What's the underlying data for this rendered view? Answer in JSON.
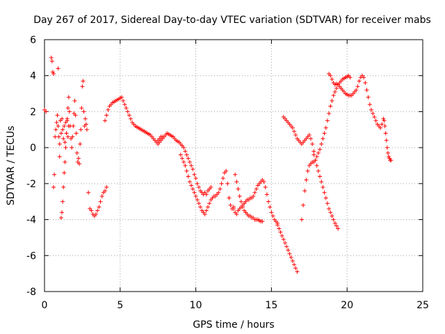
{
  "chart_data": {
    "type": "scatter",
    "title": "Day 267 of 2017, Sidereal Day-to-day VTEC variation (SDTVAR) for receiver mabs",
    "xlabel": "GPS time / hours",
    "ylabel": "SDTVAR / TECUs",
    "xlim": [
      0,
      25
    ],
    "ylim": [
      -8,
      6
    ],
    "xticks": [
      0,
      5,
      10,
      15,
      20,
      25
    ],
    "yticks": [
      -8,
      -6,
      -4,
      -2,
      0,
      2,
      4,
      6
    ],
    "grid": true,
    "marker": "+",
    "color": "#ff0000",
    "series": [
      {
        "name": "s1",
        "x": [
          0.0,
          0.1
        ],
        "y": [
          2.1,
          2.0
        ]
      },
      {
        "name": "s2",
        "x": [
          0.45,
          0.5,
          0.55,
          0.6
        ],
        "y": [
          5.0,
          4.8,
          4.2,
          4.1
        ]
      },
      {
        "name": "s3",
        "x": [
          0.6,
          0.65,
          0.7,
          0.75,
          0.8,
          0.85,
          0.9,
          0.95,
          1.0,
          1.05,
          1.1,
          1.15,
          1.2,
          1.25,
          1.3,
          1.35,
          1.4,
          1.45,
          1.5,
          1.55,
          1.6
        ],
        "y": [
          -2.2,
          -1.5,
          0.6,
          1.0,
          1.4,
          1.8,
          1.2,
          0.6,
          0.2,
          1.5,
          0.8,
          1.6,
          1.0,
          0.5,
          1.2,
          0.3,
          1.4,
          0.8,
          1.6,
          0.6,
          1.2
        ]
      },
      {
        "name": "s4",
        "x": [
          0.9,
          1.0,
          1.1,
          1.15,
          1.2,
          1.25,
          1.3,
          1.35,
          1.4,
          1.45,
          1.5,
          1.55,
          1.6,
          1.65,
          1.7,
          1.75,
          1.8,
          1.85,
          1.9,
          1.95,
          2.0,
          2.05,
          2.1,
          2.15,
          2.2,
          2.25,
          2.3,
          2.35,
          2.4,
          2.45,
          2.5,
          2.55,
          2.6,
          2.65,
          2.7,
          2.75,
          2.8
        ],
        "y": [
          4.4,
          -0.5,
          -3.9,
          -3.6,
          -3.0,
          -2.2,
          -1.4,
          -0.8,
          0.0,
          0.8,
          1.5,
          2.2,
          2.8,
          2.0,
          1.2,
          0.5,
          0.0,
          0.6,
          1.2,
          1.9,
          2.6,
          1.8,
          0.8,
          -0.3,
          -0.8,
          -0.6,
          -0.9,
          0.2,
          1.0,
          2.2,
          3.4,
          3.7,
          2.0,
          1.2,
          1.6,
          1.3,
          1.0
        ]
      },
      {
        "name": "s5",
        "x": [
          2.9,
          3.0,
          3.1,
          3.2,
          3.3,
          3.4,
          3.5,
          3.6,
          3.7,
          3.8,
          3.9,
          4.0,
          4.1
        ],
        "y": [
          -2.5,
          -3.4,
          -3.5,
          -3.7,
          -3.8,
          -3.7,
          -3.5,
          -3.3,
          -3.0,
          -2.7,
          -2.5,
          -2.4,
          -2.2
        ]
      },
      {
        "name": "s6",
        "x": [
          4.0,
          4.1,
          4.2,
          4.3,
          4.4,
          4.5,
          4.6,
          4.7,
          4.8,
          4.9,
          5.0,
          5.1,
          5.2,
          5.3,
          5.4,
          5.5,
          5.6,
          5.7,
          5.8,
          5.9,
          6.0,
          6.1,
          6.2,
          6.3,
          6.4,
          6.5,
          6.6,
          6.7,
          6.8,
          6.9,
          7.0,
          7.1,
          7.2,
          7.3,
          7.4,
          7.5,
          7.6,
          7.7,
          7.8
        ],
        "y": [
          1.5,
          1.8,
          2.1,
          2.3,
          2.4,
          2.5,
          2.55,
          2.6,
          2.65,
          2.7,
          2.75,
          2.8,
          2.6,
          2.4,
          2.2,
          2.0,
          1.8,
          1.6,
          1.4,
          1.3,
          1.2,
          1.15,
          1.1,
          1.05,
          1.0,
          0.95,
          0.9,
          0.85,
          0.8,
          0.75,
          0.7,
          0.6,
          0.5,
          0.4,
          0.3,
          0.4,
          0.5,
          0.6,
          0.6
        ]
      },
      {
        "name": "s7",
        "x": [
          7.5,
          7.6,
          7.7,
          7.8,
          7.9,
          8.0,
          8.1,
          8.2,
          8.3,
          8.4,
          8.5,
          8.6,
          8.7,
          8.8,
          8.9,
          9.0,
          9.1,
          9.2,
          9.3,
          9.4,
          9.5,
          9.6,
          9.7,
          9.8,
          9.9,
          10.0,
          10.1,
          10.2,
          10.3,
          10.4,
          10.5,
          10.6,
          10.7,
          10.8,
          10.9,
          11.0
        ],
        "y": [
          0.2,
          0.3,
          0.4,
          0.5,
          0.6,
          0.7,
          0.8,
          0.75,
          0.7,
          0.65,
          0.6,
          0.5,
          0.4,
          0.35,
          0.3,
          0.2,
          0.1,
          0.0,
          -0.2,
          -0.4,
          -0.6,
          -0.8,
          -1.0,
          -1.2,
          -1.5,
          -1.7,
          -2.0,
          -2.2,
          -2.4,
          -2.5,
          -2.6,
          -2.5,
          -2.6,
          -2.4,
          -2.3,
          -2.2
        ]
      },
      {
        "name": "s8",
        "x": [
          9.0,
          9.1,
          9.2,
          9.3,
          9.4,
          9.5,
          9.6,
          9.7,
          9.8,
          9.9,
          10.0,
          10.1,
          10.2,
          10.3,
          10.4,
          10.5,
          10.6,
          10.7,
          10.8,
          10.9,
          11.0,
          11.1,
          11.2,
          11.3,
          11.4,
          11.5,
          11.6,
          11.7,
          11.8,
          11.9,
          12.0,
          12.1,
          12.2,
          12.3,
          12.4,
          12.5
        ],
        "y": [
          -0.4,
          -0.6,
          -0.8,
          -1.0,
          -1.3,
          -1.6,
          -1.9,
          -2.1,
          -2.3,
          -2.5,
          -2.7,
          -2.9,
          -3.1,
          -3.3,
          -3.5,
          -3.6,
          -3.7,
          -3.5,
          -3.3,
          -3.1,
          -2.9,
          -2.8,
          -2.7,
          -2.7,
          -2.6,
          -2.5,
          -2.3,
          -2.0,
          -1.7,
          -1.4,
          -1.3,
          -2.0,
          -2.8,
          -3.2,
          -3.4,
          -3.3
        ]
      },
      {
        "name": "s9",
        "x": [
          12.6,
          12.7,
          12.8,
          12.9,
          13.0,
          13.1,
          13.2,
          13.3,
          13.4,
          13.5,
          13.6,
          13.7,
          13.8,
          13.9,
          14.0,
          14.1,
          14.2,
          14.3,
          14.4
        ],
        "y": [
          -1.5,
          -1.9,
          -2.3,
          -2.7,
          -3.0,
          -3.3,
          -3.5,
          -3.6,
          -3.7,
          -3.8,
          -3.8,
          -3.9,
          -3.9,
          -4.0,
          -4.0,
          -4.0,
          -4.05,
          -4.1,
          -4.1
        ]
      },
      {
        "name": "s10",
        "x": [
          12.5,
          12.6,
          12.7,
          12.8,
          12.9,
          13.0,
          13.1,
          13.2,
          13.3,
          13.4,
          13.5,
          13.6,
          13.7,
          13.8,
          13.9,
          14.0,
          14.1,
          14.2,
          14.3,
          14.4,
          14.5,
          14.6,
          14.7,
          14.8,
          14.9,
          15.0,
          15.1,
          15.2,
          15.3,
          15.4
        ],
        "y": [
          -3.4,
          -3.6,
          -3.7,
          -3.5,
          -3.4,
          -3.3,
          -3.2,
          -3.1,
          -3.0,
          -2.9,
          -2.9,
          -2.8,
          -2.8,
          -2.7,
          -2.5,
          -2.3,
          -2.1,
          -2.0,
          -1.9,
          -1.8,
          -1.9,
          -2.2,
          -2.6,
          -3.0,
          -3.3,
          -3.6,
          -3.8,
          -4.0,
          -4.1,
          -4.2
        ]
      },
      {
        "name": "s11",
        "x": [
          15.4,
          15.5,
          15.6,
          15.7,
          15.8,
          15.9,
          16.0,
          16.1,
          16.2,
          16.3,
          16.4,
          16.5,
          16.6,
          16.7
        ],
        "y": [
          -4.3,
          -4.5,
          -4.7,
          -4.9,
          -5.1,
          -5.3,
          -5.5,
          -5.7,
          -5.9,
          -6.1,
          -6.3,
          -6.5,
          -6.7,
          -6.9
        ]
      },
      {
        "name": "s12",
        "x": [
          15.8,
          15.9,
          16.0,
          16.1,
          16.2,
          16.3,
          16.4,
          16.5,
          16.6,
          16.7,
          16.8,
          16.9,
          17.0,
          17.1,
          17.2,
          17.3,
          17.4,
          17.5,
          17.6,
          17.7,
          17.8
        ],
        "y": [
          1.7,
          1.6,
          1.5,
          1.4,
          1.3,
          1.2,
          1.1,
          0.9,
          0.7,
          0.5,
          0.4,
          0.3,
          0.2,
          0.3,
          0.4,
          0.5,
          0.6,
          0.7,
          0.5,
          0.2,
          -0.2
        ]
      },
      {
        "name": "s13",
        "x": [
          17.8,
          17.9,
          18.0,
          18.1,
          18.2,
          18.3,
          18.4,
          18.5,
          18.6,
          18.7,
          18.8,
          18.9,
          19.0,
          19.1,
          19.2,
          19.3,
          19.4
        ],
        "y": [
          -0.4,
          -0.7,
          -1.0,
          -1.3,
          -1.6,
          -1.9,
          -2.2,
          -2.5,
          -2.8,
          -3.1,
          -3.4,
          -3.6,
          -3.8,
          -4.0,
          -4.2,
          -4.35,
          -4.5
        ]
      },
      {
        "name": "s14",
        "x": [
          17.0,
          17.1,
          17.2,
          17.3,
          17.4,
          17.5,
          17.6,
          17.7,
          17.8,
          17.9,
          18.0,
          18.1,
          18.2,
          18.3,
          18.4,
          18.5,
          18.6,
          18.7,
          18.8,
          18.9,
          19.0,
          19.1,
          19.2,
          19.3,
          19.4,
          19.5,
          19.6,
          19.7,
          19.8,
          19.9,
          20.0,
          20.1,
          20.2
        ],
        "y": [
          -4.0,
          -3.2,
          -2.4,
          -1.8,
          -1.3,
          -1.0,
          -0.9,
          -0.8,
          -0.8,
          -0.7,
          -0.5,
          -0.3,
          -0.1,
          0.2,
          0.5,
          0.8,
          1.1,
          1.5,
          1.9,
          2.3,
          2.6,
          2.9,
          3.1,
          3.3,
          3.5,
          3.6,
          3.7,
          3.8,
          3.85,
          3.9,
          3.95,
          4.0,
          3.9
        ]
      },
      {
        "name": "s15",
        "x": [
          18.8,
          18.9,
          19.0,
          19.1,
          19.2,
          19.3,
          19.4,
          19.5,
          19.6,
          19.7,
          19.8,
          19.9,
          20.0,
          20.1,
          20.2,
          20.3,
          20.4,
          20.5,
          20.6,
          20.7,
          20.8,
          20.9,
          21.0,
          21.1,
          21.2,
          21.3,
          21.4,
          21.5,
          21.6,
          21.7,
          21.8,
          21.9,
          22.0,
          22.1,
          22.2,
          22.3
        ],
        "y": [
          4.1,
          4.0,
          3.8,
          3.6,
          3.5,
          3.55,
          3.5,
          3.4,
          3.3,
          3.2,
          3.1,
          3.0,
          2.95,
          2.9,
          2.9,
          2.9,
          3.0,
          3.1,
          3.2,
          3.4,
          3.7,
          3.9,
          4.0,
          3.9,
          3.6,
          3.2,
          2.8,
          2.4,
          2.1,
          1.9,
          1.7,
          1.5,
          1.3,
          1.2,
          1.1,
          1.3
        ]
      },
      {
        "name": "s16",
        "x": [
          22.4,
          22.45,
          22.5,
          22.55,
          22.6,
          22.65,
          22.7,
          22.75,
          22.8,
          22.85,
          22.9
        ],
        "y": [
          1.6,
          1.5,
          1.2,
          0.8,
          0.4,
          0.0,
          -0.3,
          -0.5,
          -0.6,
          -0.7,
          -0.7
        ]
      }
    ]
  }
}
